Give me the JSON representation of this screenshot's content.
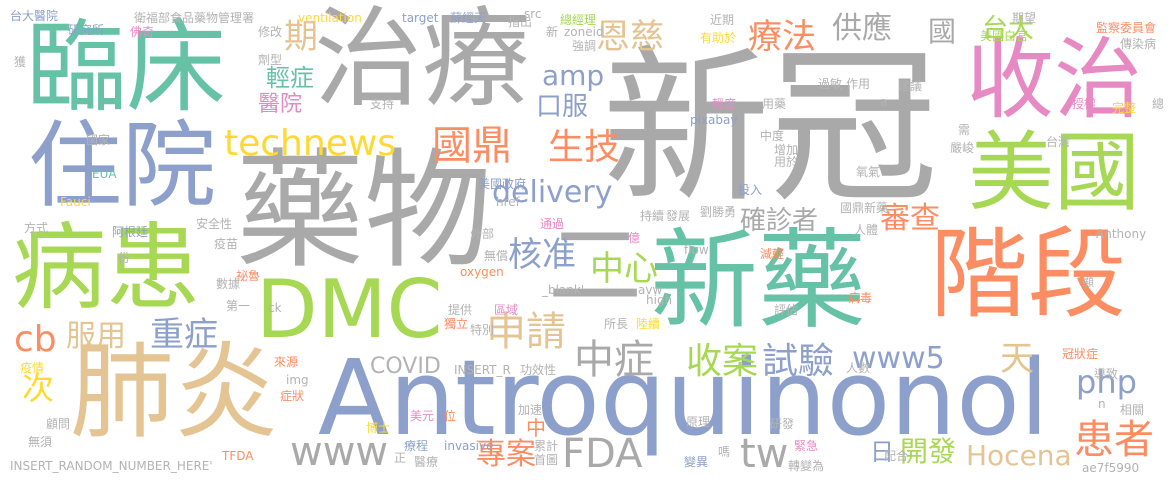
{
  "words": [
    {
      "text": "新冠",
      "color": "#a9a9a9"
    },
    {
      "text": "Antroquinonol",
      "color": "#8da0cb"
    },
    {
      "text": "藥物",
      "color": "#a9a9a9"
    },
    {
      "text": "治療",
      "color": "#a9a9a9"
    },
    {
      "text": "新藥",
      "color": "#66c2a5"
    },
    {
      "text": "DMC",
      "color": "#a6d854"
    },
    {
      "text": "肺炎",
      "color": "#e5c494"
    },
    {
      "text": "臨床",
      "color": "#66c2a5"
    },
    {
      "text": "收治",
      "color": "#e78ac3"
    },
    {
      "text": "階段",
      "color": "#fc8d62"
    },
    {
      "text": "美國",
      "color": "#a6d854"
    },
    {
      "text": "住院",
      "color": "#8da0cb"
    },
    {
      "text": "病患",
      "color": "#a6d854"
    },
    {
      "text": "二",
      "color": "#a9a9a9"
    },
    {
      "text": "technews",
      "color": "#ffd92f"
    },
    {
      "text": "國鼎",
      "color": "#fc8d62"
    },
    {
      "text": "生技",
      "color": "#fc8d62"
    },
    {
      "text": "delivery",
      "color": "#8da0cb"
    },
    {
      "text": "amp",
      "color": "#8da0cb"
    },
    {
      "text": "口服",
      "color": "#8da0cb"
    },
    {
      "text": "期",
      "color": "#e5c494"
    },
    {
      "text": "恩慈",
      "color": "#e5c494"
    },
    {
      "text": "療法",
      "color": "#fc8d62"
    },
    {
      "text": "供應",
      "color": "#a9a9a9"
    },
    {
      "text": "國",
      "color": "#a9a9a9"
    },
    {
      "text": "台大",
      "color": "#a6d854"
    },
    {
      "text": "輕症",
      "color": "#66c2a5"
    },
    {
      "text": "醫院",
      "color": "#e78ac3"
    },
    {
      "text": "核准",
      "color": "#8da0cb"
    },
    {
      "text": "中心",
      "color": "#a6d854"
    },
    {
      "text": "確診者",
      "color": "#a9a9a9"
    },
    {
      "text": "審查",
      "color": "#fc8d62"
    },
    {
      "text": "cb",
      "color": "#fc8d62"
    },
    {
      "text": "服用",
      "color": "#e5c494"
    },
    {
      "text": "重症",
      "color": "#8da0cb"
    },
    {
      "text": "申請",
      "color": "#e5c494"
    },
    {
      "text": "中症",
      "color": "#a9a9a9"
    },
    {
      "text": "收案",
      "color": "#a6d854"
    },
    {
      "text": "試驗",
      "color": "#8da0cb"
    },
    {
      "text": "www5",
      "color": "#8da0cb"
    },
    {
      "text": "天",
      "color": "#e5c494"
    },
    {
      "text": "php",
      "color": "#8da0cb"
    },
    {
      "text": "患者",
      "color": "#fc8d62"
    },
    {
      "text": "次",
      "color": "#ffd92f"
    },
    {
      "text": "COVID",
      "color": "#b3b3b3"
    },
    {
      "text": "www",
      "color": "#a9a9a9"
    },
    {
      "text": "中",
      "color": "#fc8d62"
    },
    {
      "text": "專案",
      "color": "#fc8d62"
    },
    {
      "text": "FDA",
      "color": "#a9a9a9"
    },
    {
      "text": "tw",
      "color": "#a9a9a9"
    },
    {
      "text": "日",
      "color": "#8da0cb"
    },
    {
      "text": "開發",
      "color": "#a6d854"
    },
    {
      "text": "Hocena",
      "color": "#e5c494"
    },
    {
      "text": "台大醫院",
      "color": "#8da0cb"
    },
    {
      "text": "衛福部食品藥物管理署",
      "color": "#b3b3b3"
    },
    {
      "text": "ventilation",
      "color": "#ffd92f"
    },
    {
      "text": "target",
      "color": "#8da0cb"
    },
    {
      "text": "蘇經天",
      "color": "#8da0cb"
    },
    {
      "text": "src",
      "color": "#b3b3b3"
    },
    {
      "text": "指出",
      "color": "#b3b3b3"
    },
    {
      "text": "總經理",
      "color": "#a6d854"
    },
    {
      "text": "近期",
      "color": "#b3b3b3"
    },
    {
      "text": "期望",
      "color": "#b3b3b3"
    },
    {
      "text": "監察委員會",
      "color": "#fc8d62"
    },
    {
      "text": "研究所",
      "color": "#8da0cb"
    },
    {
      "text": "佛奇",
      "color": "#e78ac3"
    },
    {
      "text": "修改",
      "color": "#b3b3b3"
    },
    {
      "text": "新",
      "color": "#b3b3b3"
    },
    {
      "text": "zoneid",
      "color": "#b3b3b3"
    },
    {
      "text": "有助於",
      "color": "#ffd92f"
    },
    {
      "text": "美國白宮",
      "color": "#a6d854"
    },
    {
      "text": "傳染病",
      "color": "#b3b3b3"
    },
    {
      "text": "獲",
      "color": "#b3b3b3"
    },
    {
      "text": "劑型",
      "color": "#b3b3b3"
    },
    {
      "text": "作用",
      "color": "#b3b3b3"
    },
    {
      "text": "過敏",
      "color": "#b3b3b3"
    },
    {
      "text": "建議",
      "color": "#b3b3b3"
    },
    {
      "text": "授權",
      "color": "#e78ac3"
    },
    {
      "text": "支持",
      "color": "#b3b3b3"
    },
    {
      "text": "輕度",
      "color": "#e78ac3"
    },
    {
      "text": "用藥",
      "color": "#b3b3b3"
    },
    {
      "text": "a",
      "color": "#b3b3b3"
    },
    {
      "text": "完整",
      "color": "#ffd92f"
    },
    {
      "text": "總",
      "color": "#b3b3b3"
    },
    {
      "text": "國家",
      "color": "#b3b3b3"
    },
    {
      "text": "pixabay",
      "color": "#8da0cb"
    },
    {
      "text": "中度",
      "color": "#b3b3b3"
    },
    {
      "text": "需",
      "color": "#b3b3b3"
    },
    {
      "text": "增加",
      "color": "#b3b3b3"
    },
    {
      "text": "台灣",
      "color": "#b3b3b3"
    },
    {
      "text": "用於",
      "color": "#b3b3b3"
    },
    {
      "text": "嚴峻",
      "color": "#b3b3b3"
    },
    {
      "text": "EUA",
      "color": "#66c2a5"
    },
    {
      "text": "美國政府",
      "color": "#8da0cb"
    },
    {
      "text": "氧氣",
      "color": "#b3b3b3"
    },
    {
      "text": "Fauci",
      "color": "#ffd92f"
    },
    {
      "text": "href",
      "color": "#b3b3b3"
    },
    {
      "text": "投入",
      "color": "#8da0cb"
    },
    {
      "text": "國鼎新藥",
      "color": "#b3b3b3"
    },
    {
      "text": "方式",
      "color": "#b3b3b3"
    },
    {
      "text": "安全性",
      "color": "#b3b3b3"
    },
    {
      "text": "外部",
      "color": "#b3b3b3"
    },
    {
      "text": "通過",
      "color": "#e78ac3"
    },
    {
      "text": "持續",
      "color": "#b3b3b3"
    },
    {
      "text": "發展",
      "color": "#b3b3b3"
    },
    {
      "text": "劉勝勇",
      "color": "#b3b3b3"
    },
    {
      "text": "阿根廷",
      "color": "#8da0cb"
    },
    {
      "text": "疫苗",
      "color": "#b3b3b3"
    },
    {
      "text": "無償",
      "color": "#b3b3b3"
    },
    {
      "text": "億",
      "color": "#e78ac3"
    },
    {
      "text": "flow",
      "color": "#b3b3b3"
    },
    {
      "text": "人體",
      "color": "#b3b3b3"
    },
    {
      "text": "Anthony",
      "color": "#b3b3b3"
    },
    {
      "text": "份",
      "color": "#b3b3b3"
    },
    {
      "text": "祕魯",
      "color": "#fc8d62"
    },
    {
      "text": "數據",
      "color": "#b3b3b3"
    },
    {
      "text": "_blank'",
      "color": "#b3b3b3"
    },
    {
      "text": "oxygen",
      "color": "#fc8d62"
    },
    {
      "text": "減輕",
      "color": "#fc8d62"
    },
    {
      "text": "avw",
      "color": "#b3b3b3"
    },
    {
      "text": "high",
      "color": "#b3b3b3"
    },
    {
      "text": "病毒",
      "color": "#fc8d62"
    },
    {
      "text": "顯",
      "color": "#b3b3b3"
    },
    {
      "text": "第一",
      "color": "#b3b3b3"
    },
    {
      "text": "ck",
      "color": "#b3b3b3"
    },
    {
      "text": "提供",
      "color": "#b3b3b3"
    },
    {
      "text": "區域",
      "color": "#e78ac3"
    },
    {
      "text": "獨立",
      "color": "#fc8d62"
    },
    {
      "text": "特別",
      "color": "#b3b3b3"
    },
    {
      "text": "所長",
      "color": "#b3b3b3"
    },
    {
      "text": "陸續",
      "color": "#ffd92f"
    },
    {
      "text": "評估",
      "color": "#b3b3b3"
    },
    {
      "text": "冠狀症",
      "color": "#fc8d62"
    },
    {
      "text": "疫情",
      "color": "#ffd92f"
    },
    {
      "text": "來源",
      "color": "#fc8d62"
    },
    {
      "text": "img",
      "color": "#b3b3b3"
    },
    {
      "text": "INSERT_R",
      "color": "#b3b3b3"
    },
    {
      "text": "功效性",
      "color": "#b3b3b3"
    },
    {
      "text": "人數",
      "color": "#b3b3b3"
    },
    {
      "text": "導致",
      "color": "#b3b3b3"
    },
    {
      "text": "顧問",
      "color": "#b3b3b3"
    },
    {
      "text": "症狀",
      "color": "#fc8d62"
    },
    {
      "text": "美元",
      "color": "#e78ac3"
    },
    {
      "text": "位",
      "color": "#fc8d62"
    },
    {
      "text": "加速",
      "color": "#b3b3b3"
    },
    {
      "text": "研發",
      "color": "#b3b3b3"
    },
    {
      "text": "n",
      "color": "#b3b3b3"
    },
    {
      "text": "相關",
      "color": "#b3b3b3"
    },
    {
      "text": "無須",
      "color": "#b3b3b3"
    },
    {
      "text": "博士",
      "color": "#ffd92f"
    },
    {
      "text": "累計",
      "color": "#b3b3b3"
    },
    {
      "text": "原理",
      "color": "#b3b3b3"
    },
    {
      "text": "緊急",
      "color": "#e78ac3"
    },
    {
      "text": "INSERT_RANDOM_NUMBER_HERE'",
      "color": "#b3b3b3"
    },
    {
      "text": "TFDA",
      "color": "#fc8d62"
    },
    {
      "text": "正",
      "color": "#b3b3b3"
    },
    {
      "text": "療程",
      "color": "#8da0cb"
    },
    {
      "text": "invasive",
      "color": "#8da0cb"
    },
    {
      "text": "首圖",
      "color": "#b3b3b3"
    },
    {
      "text": "變異",
      "color": "#8da0cb"
    },
    {
      "text": "轉變為",
      "color": "#b3b3b3"
    },
    {
      "text": "配合",
      "color": "#b3b3b3"
    },
    {
      "text": "ae7f5990",
      "color": "#b3b3b3"
    },
    {
      "text": "醫療",
      "color": "#b3b3b3"
    },
    {
      "text": "嗎",
      "color": "#b3b3b3"
    },
    {
      "text": "強調",
      "color": "#b3b3b3"
    }
  ]
}
